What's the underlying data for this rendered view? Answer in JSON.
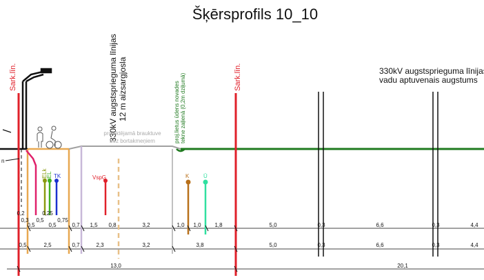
{
  "title": "Šķērsprofils 10_10",
  "labels": {
    "sark_lin_left": "Sark.līn.",
    "sark_lin_right": "Sark.līn.",
    "power_line_zone_line1": "330kV augstsprieguma līnijas",
    "power_line_zone_line2": "12 m aizsargjosla",
    "drainage_line1": "proj.lietus ūdens novades",
    "drainage_line2": "tekne zaļienā (0,2m dziļumā)",
    "projected_road_line1": "projektējamā brauktuve",
    "projected_road_line2": "bez bortakmeņiem",
    "power_line_right_line1": "330kV augstsprieguma līnijas",
    "power_line_right_line2": "vadu aptuvenais augstums",
    "left_cut_text": "n"
  },
  "utilities": {
    "iElk": "iELk",
    "iEL": "iEL",
    "tk": "TK",
    "vspg": "VspG",
    "k": "K",
    "u": "Ū"
  },
  "dimensions": {
    "row_upper_small": [
      "0,2",
      "0,25"
    ],
    "row1": [
      "0,3",
      "0,5",
      "0,5",
      "0,5",
      "0,75",
      "0,7",
      "1,5",
      "0,8",
      "3,2",
      "1,0",
      "1,0",
      "1,8",
      "5,0",
      "0,3",
      "6,6",
      "0,3",
      "4,4"
    ],
    "row2": [
      "0,5",
      "2,5",
      "0,7",
      "2,3",
      "3,2",
      "3,8",
      "5,0",
      "0,3",
      "6,6",
      "0,3",
      "4,4"
    ],
    "row3": [
      "13,0",
      "20,1"
    ]
  },
  "colors": {
    "red_line": "#e0202a",
    "green_ground": "#1f7a1f",
    "orange_surface": "#e8a850",
    "grey_surface": "#a0a0a0",
    "lilac_pipe": "#c8b8d8",
    "magenta_pipe": "#e0206a",
    "olive_pipe": "#8a9a10",
    "green_pipe": "#40b020",
    "blue_pipe": "#1a30d0",
    "brown_pipe": "#b8701a",
    "teal_pipe": "#30e0a0",
    "drainage_text": "#1f7a1f"
  },
  "icons": [
    "street-lamp-icon",
    "pedestrian-icon",
    "cyclist-icon"
  ]
}
